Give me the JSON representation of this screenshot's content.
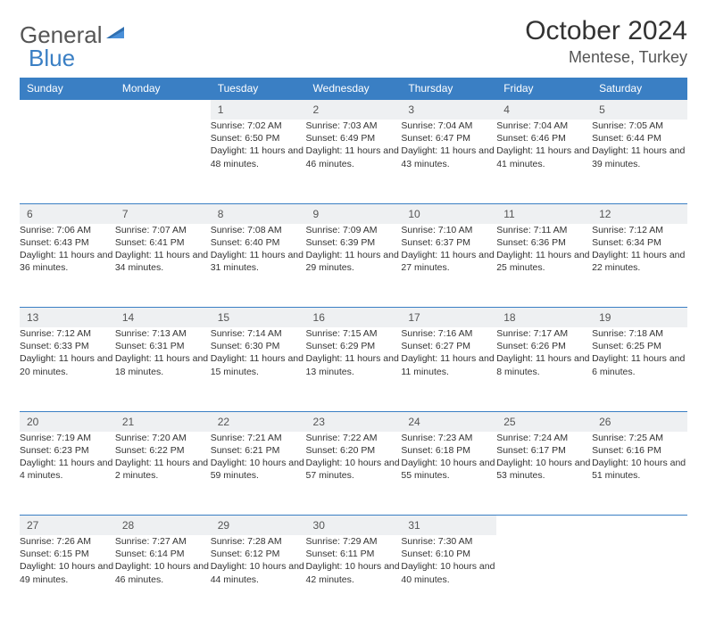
{
  "brand": {
    "name_a": "General",
    "name_b": "Blue"
  },
  "title": "October 2024",
  "location": "Mentese, Turkey",
  "colors": {
    "header_bg": "#3a7fc4",
    "header_text": "#ffffff",
    "daynum_bg": "#eef0f2",
    "border": "#3a7fc4",
    "text": "#333333",
    "brand_gray": "#555555",
    "brand_blue": "#3a7fc4",
    "page_bg": "#ffffff"
  },
  "weekdays": [
    "Sunday",
    "Monday",
    "Tuesday",
    "Wednesday",
    "Thursday",
    "Friday",
    "Saturday"
  ],
  "weeks": [
    [
      null,
      null,
      {
        "n": "1",
        "sr": "Sunrise: 7:02 AM",
        "ss": "Sunset: 6:50 PM",
        "dl": "Daylight: 11 hours and 48 minutes."
      },
      {
        "n": "2",
        "sr": "Sunrise: 7:03 AM",
        "ss": "Sunset: 6:49 PM",
        "dl": "Daylight: 11 hours and 46 minutes."
      },
      {
        "n": "3",
        "sr": "Sunrise: 7:04 AM",
        "ss": "Sunset: 6:47 PM",
        "dl": "Daylight: 11 hours and 43 minutes."
      },
      {
        "n": "4",
        "sr": "Sunrise: 7:04 AM",
        "ss": "Sunset: 6:46 PM",
        "dl": "Daylight: 11 hours and 41 minutes."
      },
      {
        "n": "5",
        "sr": "Sunrise: 7:05 AM",
        "ss": "Sunset: 6:44 PM",
        "dl": "Daylight: 11 hours and 39 minutes."
      }
    ],
    [
      {
        "n": "6",
        "sr": "Sunrise: 7:06 AM",
        "ss": "Sunset: 6:43 PM",
        "dl": "Daylight: 11 hours and 36 minutes."
      },
      {
        "n": "7",
        "sr": "Sunrise: 7:07 AM",
        "ss": "Sunset: 6:41 PM",
        "dl": "Daylight: 11 hours and 34 minutes."
      },
      {
        "n": "8",
        "sr": "Sunrise: 7:08 AM",
        "ss": "Sunset: 6:40 PM",
        "dl": "Daylight: 11 hours and 31 minutes."
      },
      {
        "n": "9",
        "sr": "Sunrise: 7:09 AM",
        "ss": "Sunset: 6:39 PM",
        "dl": "Daylight: 11 hours and 29 minutes."
      },
      {
        "n": "10",
        "sr": "Sunrise: 7:10 AM",
        "ss": "Sunset: 6:37 PM",
        "dl": "Daylight: 11 hours and 27 minutes."
      },
      {
        "n": "11",
        "sr": "Sunrise: 7:11 AM",
        "ss": "Sunset: 6:36 PM",
        "dl": "Daylight: 11 hours and 25 minutes."
      },
      {
        "n": "12",
        "sr": "Sunrise: 7:12 AM",
        "ss": "Sunset: 6:34 PM",
        "dl": "Daylight: 11 hours and 22 minutes."
      }
    ],
    [
      {
        "n": "13",
        "sr": "Sunrise: 7:12 AM",
        "ss": "Sunset: 6:33 PM",
        "dl": "Daylight: 11 hours and 20 minutes."
      },
      {
        "n": "14",
        "sr": "Sunrise: 7:13 AM",
        "ss": "Sunset: 6:31 PM",
        "dl": "Daylight: 11 hours and 18 minutes."
      },
      {
        "n": "15",
        "sr": "Sunrise: 7:14 AM",
        "ss": "Sunset: 6:30 PM",
        "dl": "Daylight: 11 hours and 15 minutes."
      },
      {
        "n": "16",
        "sr": "Sunrise: 7:15 AM",
        "ss": "Sunset: 6:29 PM",
        "dl": "Daylight: 11 hours and 13 minutes."
      },
      {
        "n": "17",
        "sr": "Sunrise: 7:16 AM",
        "ss": "Sunset: 6:27 PM",
        "dl": "Daylight: 11 hours and 11 minutes."
      },
      {
        "n": "18",
        "sr": "Sunrise: 7:17 AM",
        "ss": "Sunset: 6:26 PM",
        "dl": "Daylight: 11 hours and 8 minutes."
      },
      {
        "n": "19",
        "sr": "Sunrise: 7:18 AM",
        "ss": "Sunset: 6:25 PM",
        "dl": "Daylight: 11 hours and 6 minutes."
      }
    ],
    [
      {
        "n": "20",
        "sr": "Sunrise: 7:19 AM",
        "ss": "Sunset: 6:23 PM",
        "dl": "Daylight: 11 hours and 4 minutes."
      },
      {
        "n": "21",
        "sr": "Sunrise: 7:20 AM",
        "ss": "Sunset: 6:22 PM",
        "dl": "Daylight: 11 hours and 2 minutes."
      },
      {
        "n": "22",
        "sr": "Sunrise: 7:21 AM",
        "ss": "Sunset: 6:21 PM",
        "dl": "Daylight: 10 hours and 59 minutes."
      },
      {
        "n": "23",
        "sr": "Sunrise: 7:22 AM",
        "ss": "Sunset: 6:20 PM",
        "dl": "Daylight: 10 hours and 57 minutes."
      },
      {
        "n": "24",
        "sr": "Sunrise: 7:23 AM",
        "ss": "Sunset: 6:18 PM",
        "dl": "Daylight: 10 hours and 55 minutes."
      },
      {
        "n": "25",
        "sr": "Sunrise: 7:24 AM",
        "ss": "Sunset: 6:17 PM",
        "dl": "Daylight: 10 hours and 53 minutes."
      },
      {
        "n": "26",
        "sr": "Sunrise: 7:25 AM",
        "ss": "Sunset: 6:16 PM",
        "dl": "Daylight: 10 hours and 51 minutes."
      }
    ],
    [
      {
        "n": "27",
        "sr": "Sunrise: 7:26 AM",
        "ss": "Sunset: 6:15 PM",
        "dl": "Daylight: 10 hours and 49 minutes."
      },
      {
        "n": "28",
        "sr": "Sunrise: 7:27 AM",
        "ss": "Sunset: 6:14 PM",
        "dl": "Daylight: 10 hours and 46 minutes."
      },
      {
        "n": "29",
        "sr": "Sunrise: 7:28 AM",
        "ss": "Sunset: 6:12 PM",
        "dl": "Daylight: 10 hours and 44 minutes."
      },
      {
        "n": "30",
        "sr": "Sunrise: 7:29 AM",
        "ss": "Sunset: 6:11 PM",
        "dl": "Daylight: 10 hours and 42 minutes."
      },
      {
        "n": "31",
        "sr": "Sunrise: 7:30 AM",
        "ss": "Sunset: 6:10 PM",
        "dl": "Daylight: 10 hours and 40 minutes."
      },
      null,
      null
    ]
  ]
}
